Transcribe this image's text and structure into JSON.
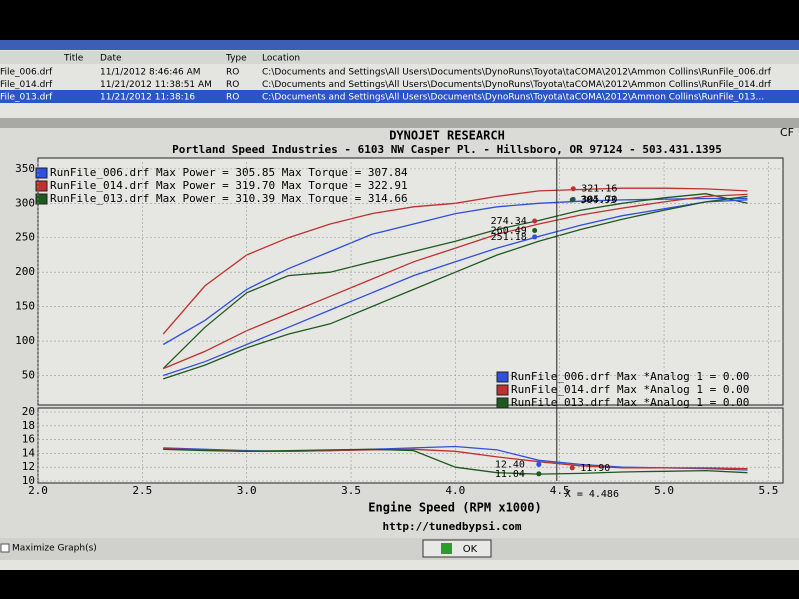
{
  "file_table": {
    "columns": [
      "Title",
      "Date",
      "Type",
      "Location"
    ],
    "rows": [
      [
        "File_006.drf",
        "11/1/2012 8:46:46 AM",
        "RO",
        "C:\\Documents and Settings\\All Users\\Documents\\DynoRuns\\Toyota\\taCOMA\\2012\\Ammon Collins\\RunFile_006.drf"
      ],
      [
        "File_014.drf",
        "11/21/2012 11:38:51 AM",
        "RO",
        "C:\\Documents and Settings\\All Users\\Documents\\DynoRuns\\Toyota\\taCOMA\\2012\\Ammon Collins\\RunFile_014.drf"
      ],
      [
        "File_013.drf",
        "11/21/2012 11:38:16",
        "RO",
        "C:\\Documents and Settings\\All Users\\Documents\\DynoRuns\\Toyota\\taCOMA\\2012\\Ammon Collins\\RunFile_013..."
      ]
    ]
  },
  "corner_label": "CF",
  "footer": {
    "url": "http://tunedbypsi.com",
    "checkbox": "Maximize Graph(s)",
    "ok_button": "OK"
  },
  "chart_data": [
    {
      "type": "line",
      "title": "DYNOJET RESEARCH",
      "subtitle": "Portland Speed Industries - 6103 NW Casper Pl. - Hillsboro, OR 97124 - 503.431.1395",
      "x": [
        2.6,
        2.8,
        3.0,
        3.2,
        3.4,
        3.6,
        3.8,
        4.0,
        4.2,
        4.4,
        4.6,
        4.8,
        5.0,
        5.2,
        5.4
      ],
      "xlim": [
        2.0,
        5.57
      ],
      "ylim": [
        10,
        360
      ],
      "yticks": [
        50,
        100,
        150,
        200,
        250,
        300,
        350
      ],
      "grid": true,
      "legend": [
        {
          "label": "RunFile_006.drf Max Power = 305.85 Max Torque = 307.84",
          "color": "#2f4fe0"
        },
        {
          "label": "RunFile_014.drf Max Power = 319.70 Max Torque = 322.91",
          "color": "#c03030"
        },
        {
          "label": "RunFile_013.drf Max Power = 310.39 Max Torque = 314.66",
          "color": "#1e5a1e"
        }
      ],
      "series": [
        {
          "color": "#2f4fe0",
          "values": [
            95,
            130,
            175,
            205,
            230,
            255,
            270,
            285,
            295,
            300,
            303,
            305,
            306,
            307,
            307
          ]
        },
        {
          "color": "#c03030",
          "values": [
            110,
            180,
            225,
            250,
            270,
            285,
            295,
            300,
            310,
            318,
            320,
            322,
            322,
            321,
            318
          ]
        },
        {
          "color": "#1e5a1e",
          "values": [
            60,
            120,
            170,
            195,
            200,
            215,
            230,
            245,
            262,
            275,
            290,
            300,
            308,
            314,
            300
          ]
        },
        {
          "color": "#2f4fe0",
          "values": [
            50,
            70,
            95,
            120,
            145,
            170,
            195,
            215,
            235,
            252,
            268,
            282,
            292,
            302,
            305
          ]
        },
        {
          "color": "#c03030",
          "values": [
            60,
            85,
            115,
            140,
            165,
            190,
            215,
            235,
            255,
            270,
            283,
            293,
            302,
            310,
            313
          ]
        },
        {
          "color": "#1e5a1e",
          "values": [
            45,
            65,
            90,
            110,
            125,
            150,
            175,
            200,
            225,
            245,
            262,
            277,
            290,
            302,
            310
          ]
        }
      ],
      "annotations": [
        {
          "x": 4.565,
          "y": 321.16,
          "label": "321.16",
          "color": "#c03030"
        },
        {
          "x": 4.565,
          "y": 305.7,
          "label": "305.70",
          "color": "#2f4fe0"
        },
        {
          "x": 4.56,
          "y": 304.93,
          "label": "304.93",
          "color": "#1e5a1e"
        },
        {
          "x": 4.38,
          "y": 274.34,
          "label": "274.34",
          "color": "#c03030"
        },
        {
          "x": 4.38,
          "y": 260.49,
          "label": "260.49",
          "color": "#1e5a1e"
        },
        {
          "x": 4.38,
          "y": 251.18,
          "label": "251.18",
          "color": "#2f4fe0"
        }
      ]
    },
    {
      "type": "line",
      "x_label": "Engine Speed (RPM x1000)",
      "x": [
        2.6,
        2.8,
        3.0,
        3.2,
        3.4,
        3.6,
        3.8,
        4.0,
        4.2,
        4.4,
        4.6,
        4.8,
        5.0,
        5.2,
        5.4
      ],
      "xlim": [
        2.0,
        5.57
      ],
      "xticks": [
        {
          "value": 2,
          "label": "2.0"
        },
        {
          "value": 2.5,
          "label": "2.5"
        },
        {
          "value": 3,
          "label": "3.0"
        },
        {
          "value": 3.5,
          "label": "3.5"
        },
        {
          "value": 4,
          "label": "4.0"
        },
        {
          "value": 4.5,
          "label": "4.5"
        },
        {
          "value": 5,
          "label": "5.0"
        },
        {
          "value": 5.5,
          "label": "5.5"
        }
      ],
      "ylim": [
        10,
        20
      ],
      "yticks": [
        10,
        12,
        14,
        16,
        18,
        20
      ],
      "grid": true,
      "cursor": {
        "value": 4.486,
        "label": "X = 4.486"
      },
      "legend": [
        {
          "label": "RunFile_006.drf Max *Analog 1 = 0.00",
          "color": "#2f4fe0"
        },
        {
          "label": "RunFile_014.drf Max *Analog 1 = 0.00",
          "color": "#c03030"
        },
        {
          "label": "RunFile_013.drf Max *Analog 1 = 0.00",
          "color": "#1e5a1e"
        }
      ],
      "series": [
        {
          "color": "#2f4fe0",
          "values": [
            14.8,
            14.6,
            14.4,
            14.3,
            14.4,
            14.6,
            14.8,
            15.0,
            14.5,
            13.0,
            12.4,
            12.0,
            11.9,
            11.8,
            11.6
          ]
        },
        {
          "color": "#c03030",
          "values": [
            14.7,
            14.5,
            14.3,
            14.3,
            14.4,
            14.5,
            14.6,
            14.3,
            13.5,
            12.8,
            12.2,
            11.9,
            11.9,
            11.9,
            11.8
          ]
        },
        {
          "color": "#1e5a1e",
          "values": [
            14.6,
            14.4,
            14.3,
            14.4,
            14.5,
            14.6,
            14.4,
            12.0,
            11.2,
            11.0,
            11.1,
            11.3,
            11.4,
            11.5,
            11.2
          ]
        }
      ],
      "annotations": [
        {
          "x": 4.4,
          "y": 12.4,
          "label": "12.40",
          "color": "#2f4fe0"
        },
        {
          "x": 4.56,
          "y": 11.9,
          "label": "11.90",
          "color": "#c03030"
        },
        {
          "x": 4.4,
          "y": 11.04,
          "label": "11.04",
          "color": "#1e5a1e"
        }
      ]
    }
  ]
}
